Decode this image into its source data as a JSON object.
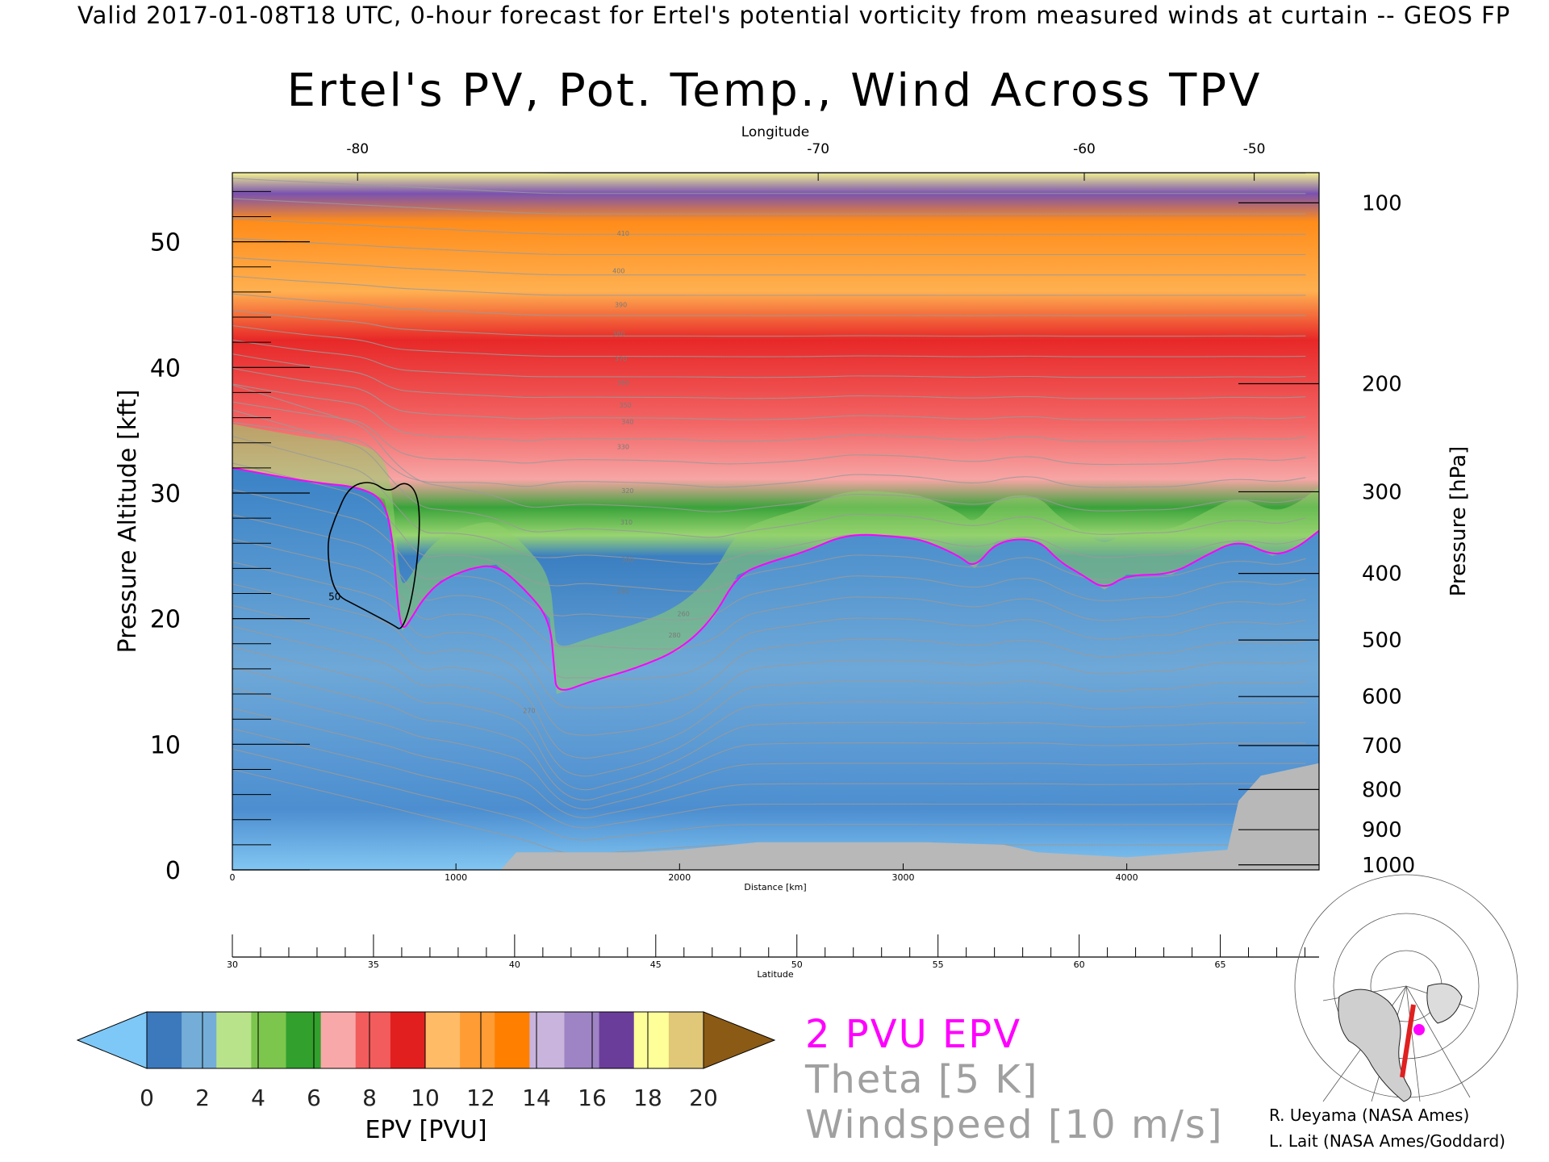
{
  "header": {
    "valid_line": "Valid 2017-01-08T18 UTC, 0-hour forecast for Ertel's potential vorticity from measured winds at curtain -- GEOS FP"
  },
  "chart_data": {
    "type": "heatmap",
    "title": "Ertel's PV, Pot. Temp., Wind Across TPV",
    "x_axis": {
      "label": "Distance [km]",
      "range": [
        0,
        4860
      ],
      "ticks": [
        0,
        1000,
        2000,
        3000,
        4000
      ]
    },
    "top_axis": {
      "label": "Longitude",
      "ticks": [
        {
          "value": -80,
          "distance_km": 560
        },
        {
          "value": -70,
          "distance_km": 2620
        },
        {
          "value": -60,
          "distance_km": 3810
        },
        {
          "value": -50,
          "distance_km": 4570
        }
      ]
    },
    "latitude_axis": {
      "label": "Latitude",
      "range": [
        30,
        68.5
      ],
      "ticks": [
        30,
        35,
        40,
        45,
        50,
        55,
        60,
        65
      ]
    },
    "y_left": {
      "label": "Pressure Altitude [kft]",
      "range": [
        0,
        55.5
      ],
      "ticks": [
        0,
        10,
        20,
        30,
        40,
        50
      ]
    },
    "y_right": {
      "label": "Pressure [hPa]",
      "ticks": [
        {
          "value": 100,
          "kft": 53.1
        },
        {
          "value": 200,
          "kft": 38.7
        },
        {
          "value": 300,
          "kft": 30.1
        },
        {
          "value": 400,
          "kft": 23.6
        },
        {
          "value": 500,
          "kft": 18.3
        },
        {
          "value": 600,
          "kft": 13.8
        },
        {
          "value": 700,
          "kft": 9.9
        },
        {
          "value": 800,
          "kft": 6.4
        },
        {
          "value": 900,
          "kft": 3.2
        },
        {
          "value": 1000,
          "kft": 0.4
        }
      ]
    },
    "colorbar": {
      "label": "EPV [PVU]",
      "ticks": [
        0,
        2,
        4,
        6,
        8,
        10,
        12,
        14,
        16,
        18,
        20
      ],
      "colors": [
        "#3c78bc",
        "#74aed8",
        "#b9e38a",
        "#7cc64e",
        "#32a02c",
        "#f8a8a8",
        "#f25c5c",
        "#e11f1f",
        "#ffbb66",
        "#ff9c33",
        "#ff7f00",
        "#c8b4dc",
        "#9e84c4",
        "#6a3d9a",
        "#ffff99",
        "#e0c878"
      ],
      "under_color": "#7ec8f8",
      "over_color": "#8b5a14"
    },
    "pv_2pvu_contour": [
      [
        0,
        32
      ],
      [
        150,
        31.5
      ],
      [
        380,
        30.8
      ],
      [
        560,
        30.5
      ],
      [
        680,
        29.5
      ],
      [
        720,
        26
      ],
      [
        740,
        21
      ],
      [
        760,
        19
      ],
      [
        800,
        20
      ],
      [
        850,
        21.5
      ],
      [
        930,
        23
      ],
      [
        1060,
        24
      ],
      [
        1180,
        24.3
      ],
      [
        1300,
        22.5
      ],
      [
        1420,
        20
      ],
      [
        1440,
        16
      ],
      [
        1450,
        14
      ],
      [
        1600,
        15
      ],
      [
        1800,
        16
      ],
      [
        2000,
        17.5
      ],
      [
        2150,
        20
      ],
      [
        2260,
        23.5
      ],
      [
        2400,
        24.5
      ],
      [
        2560,
        25.3
      ],
      [
        2750,
        26.8
      ],
      [
        3000,
        26.5
      ],
      [
        3100,
        26.2
      ],
      [
        3250,
        25
      ],
      [
        3320,
        24
      ],
      [
        3420,
        26.2
      ],
      [
        3600,
        26.4
      ],
      [
        3700,
        24.5
      ],
      [
        3800,
        23.5
      ],
      [
        3900,
        22.3
      ],
      [
        4000,
        23.5
      ],
      [
        4200,
        23.5
      ],
      [
        4350,
        25
      ],
      [
        4500,
        26.3
      ],
      [
        4650,
        25
      ],
      [
        4750,
        25.5
      ],
      [
        4860,
        27
      ]
    ],
    "wind_contour": {
      "label": "50",
      "value_ms": 50,
      "points": [
        [
          460,
          28
        ],
        [
          520,
          30.5
        ],
        [
          620,
          31
        ],
        [
          700,
          30
        ],
        [
          770,
          31
        ],
        [
          830,
          30
        ],
        [
          840,
          27
        ],
        [
          810,
          22
        ],
        [
          760,
          19
        ],
        [
          720,
          19.5
        ],
        [
          560,
          21
        ],
        [
          450,
          22
        ],
        [
          420,
          26
        ]
      ]
    },
    "theta_labels": [
      "290",
      "300",
      "310",
      "320",
      "330",
      "340",
      "350",
      "360",
      "370",
      "380",
      "390",
      "400",
      "410",
      "270",
      "280",
      "260"
    ],
    "legend": {
      "pv_label": "2 PVU EPV",
      "theta_label": "Theta [5 K]",
      "wind_label": "Windspeed [10 m/s]",
      "pv_color": "#ff00ff",
      "theta_color": "#a0a0a0"
    },
    "grid": false
  },
  "credits": [
    "R. Ueyama (NASA Ames)",
    "L. Lait (NASA Ames/Goddard)"
  ]
}
